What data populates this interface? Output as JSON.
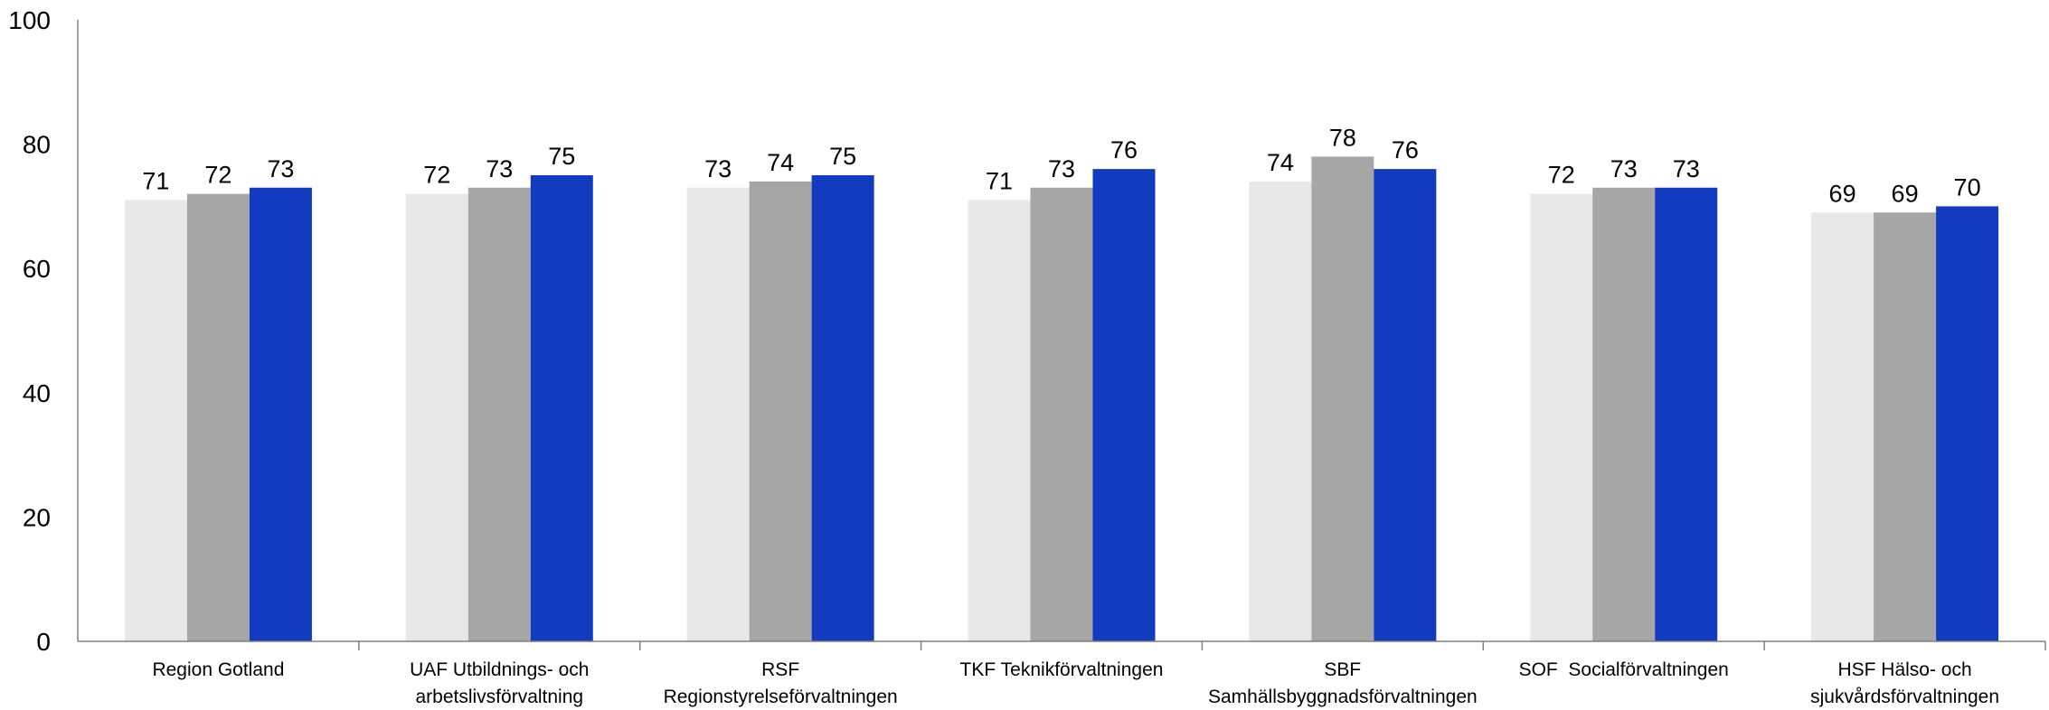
{
  "chart_data": {
    "type": "bar",
    "title": "",
    "xlabel": "",
    "ylabel": "",
    "ylim": [
      0,
      100
    ],
    "yticks": [
      0,
      20,
      40,
      60,
      80,
      100
    ],
    "grid": false,
    "legend": "none",
    "categories": [
      [
        "Region Gotland"
      ],
      [
        "UAF Utbildnings- och",
        "arbetslivsförvaltning"
      ],
      [
        "RSF",
        "Regionstyrelseförvaltningen"
      ],
      [
        "TKF Teknikförvaltningen"
      ],
      [
        "SBF",
        "Samhällsbyggnadsförvaltningen"
      ],
      [
        "SOF  Socialförvaltningen"
      ],
      [
        "HSF Hälso- och",
        "sjukvårdsförvaltningen"
      ]
    ],
    "series": [
      {
        "color": "#e8e8e8",
        "values": [
          71,
          72,
          73,
          71,
          74,
          72,
          69
        ]
      },
      {
        "color": "#a6a6a6",
        "values": [
          72,
          73,
          74,
          73,
          78,
          73,
          69
        ]
      },
      {
        "color": "#123bbf",
        "values": [
          73,
          75,
          75,
          76,
          76,
          73,
          70
        ]
      }
    ]
  }
}
